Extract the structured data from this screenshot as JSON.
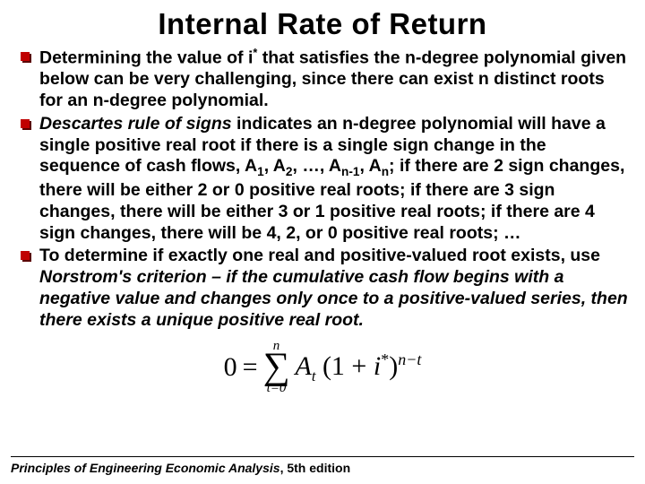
{
  "title": "Internal Rate of Return",
  "bullets": {
    "b1_html": "Determining the value of i<sup>*</sup> that satisfies the n-degree polynomial given below can be very challenging, since there can exist n distinct roots for an n-degree polynomial.",
    "b2_html": "<span class=\"italic\">Descartes rule of signs</span> indicates an n-degree polynomial will have a single positive real root if there is a single sign change in the sequence of cash flows, A<sub>1</sub>, A<sub>2</sub>, …, A<sub>n-1</sub>, A<sub>n</sub>; if there are 2 sign changes, there will be either 2 or 0 positive real roots; if there are 3 sign changes, there will be either 3 or 1 positive real roots; if there are 4 sign changes, there will be 4, 2, or 0 positive real roots; …",
    "b3_html": "To determine if exactly one real and positive-valued root exists, use <span class=\"italic\">Norstrom's criterion – if the cumulative cash flow begins with a negative value and changes only once to a positive-valued series, then there exists a unique positive real root.</span>"
  },
  "formula": {
    "lhs": "0",
    "eq": "=",
    "sigma_top": "n",
    "sigma_bottom": "t=0",
    "term_html": "<span style=\"font-style:italic;\">A<sub style=\"font-size:0.55em;\">t</sub></span> (1 + <span style=\"font-style:italic;\">i</span><sup>*</sup>)<sup><span style=\"font-style:italic;\">n−t</span></sup>"
  },
  "footer": {
    "book": "Principles of Engineering Economic Analysis",
    "edition": ", 5th edition"
  },
  "colors": {
    "bullet_fill": "#c00000",
    "bullet_shadow": "#5a0000",
    "text": "#000000",
    "bg": "#ffffff"
  }
}
